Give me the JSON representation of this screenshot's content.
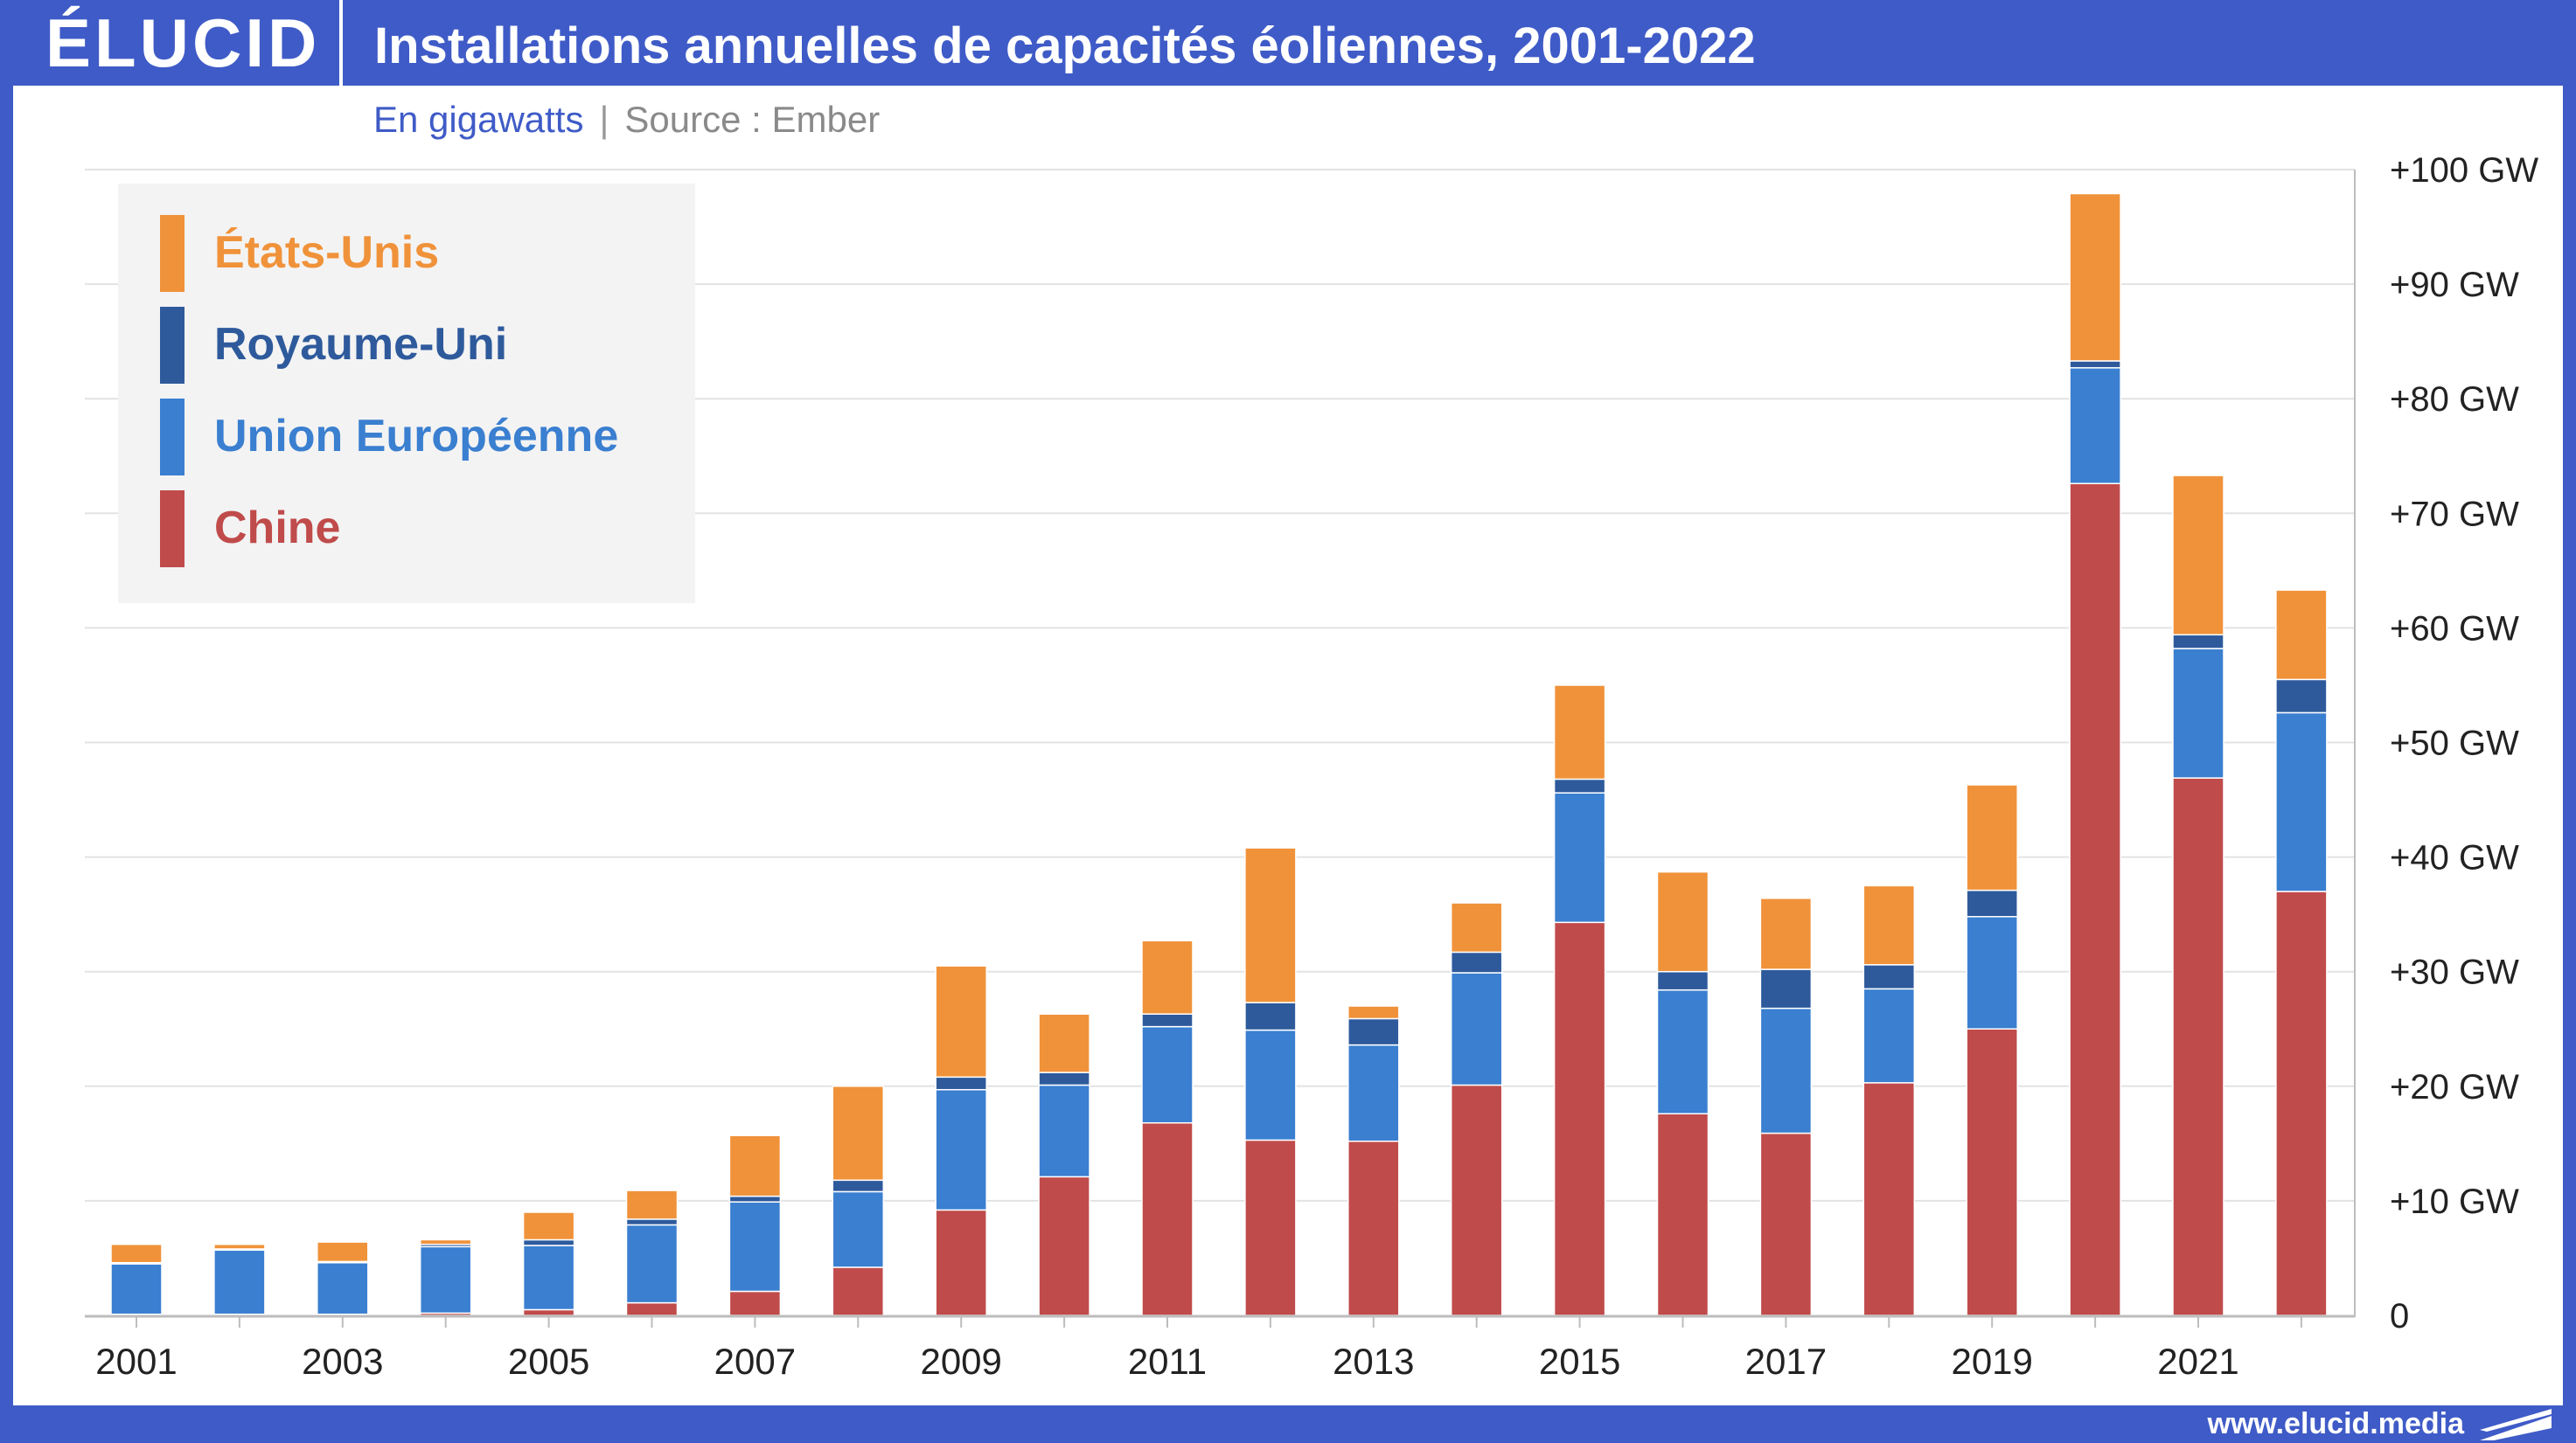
{
  "header": {
    "logo": "ÉLUCID",
    "title": "Installations annuelles de capacités éoliennes, 2001-2022"
  },
  "subtitle": {
    "unit": "En gigawatts",
    "separator": "|",
    "source": "Source : Ember"
  },
  "footer": {
    "url": "www.elucid.media"
  },
  "colors": {
    "header_bg": "#3f5bc7",
    "etats_unis": "#f0923a",
    "royaume_uni": "#2e5a9c",
    "union_europeenne": "#3a7fd0",
    "chine": "#c04b4b",
    "grid": "#e3e3e3",
    "legend_bg": "#f3f3f3"
  },
  "chart_data": {
    "type": "bar",
    "stacked": true,
    "x": [
      2001,
      2002,
      2003,
      2004,
      2005,
      2006,
      2007,
      2008,
      2009,
      2010,
      2011,
      2012,
      2013,
      2014,
      2015,
      2016,
      2017,
      2018,
      2019,
      2020,
      2021,
      2022
    ],
    "x_tick_labels": [
      "2001",
      "2003",
      "2005",
      "2007",
      "2009",
      "2011",
      "2013",
      "2015",
      "2017",
      "2019",
      "2021"
    ],
    "ylim": [
      0,
      100
    ],
    "y_tick_labels": [
      "0",
      "+10 GW",
      "+20 GW",
      "+30 GW",
      "+40 GW",
      "+50 GW",
      "+60 GW",
      "+70 GW",
      "+80 GW",
      "+90 GW",
      "+100 GW"
    ],
    "grid": true,
    "legend_position": "top-left",
    "series": [
      {
        "name": "Chine",
        "color_key": "chine",
        "values": [
          0.1,
          0.1,
          0.1,
          0.2,
          0.5,
          1.1,
          2.1,
          4.2,
          9.2,
          12.1,
          16.8,
          15.3,
          15.2,
          20.1,
          34.3,
          17.6,
          15.9,
          20.3,
          25.0,
          72.6,
          46.9,
          37.0
        ]
      },
      {
        "name": "Union Européenne",
        "color_key": "union_europeenne",
        "values": [
          4.4,
          5.6,
          4.5,
          5.8,
          5.6,
          6.8,
          7.8,
          6.6,
          10.5,
          8.0,
          8.4,
          9.6,
          8.4,
          9.8,
          11.3,
          10.8,
          10.9,
          8.2,
          9.8,
          10.1,
          11.3,
          15.6
        ]
      },
      {
        "name": "Royaume-Uni",
        "color_key": "royaume_uni",
        "values": [
          0.1,
          0.1,
          0.1,
          0.2,
          0.5,
          0.5,
          0.5,
          1.0,
          1.1,
          1.1,
          1.1,
          2.4,
          2.3,
          1.8,
          1.2,
          1.6,
          3.4,
          2.1,
          2.3,
          0.6,
          1.2,
          2.9
        ]
      },
      {
        "name": "États-Unis",
        "color_key": "etats_unis",
        "values": [
          1.6,
          0.4,
          1.7,
          0.4,
          2.4,
          2.5,
          5.3,
          8.2,
          9.7,
          5.1,
          6.4,
          13.5,
          1.1,
          4.3,
          8.2,
          8.7,
          6.2,
          6.9,
          9.2,
          14.6,
          13.9,
          7.8
        ]
      }
    ],
    "legend_order": [
      "États-Unis",
      "Royaume-Uni",
      "Union Européenne",
      "Chine"
    ]
  }
}
